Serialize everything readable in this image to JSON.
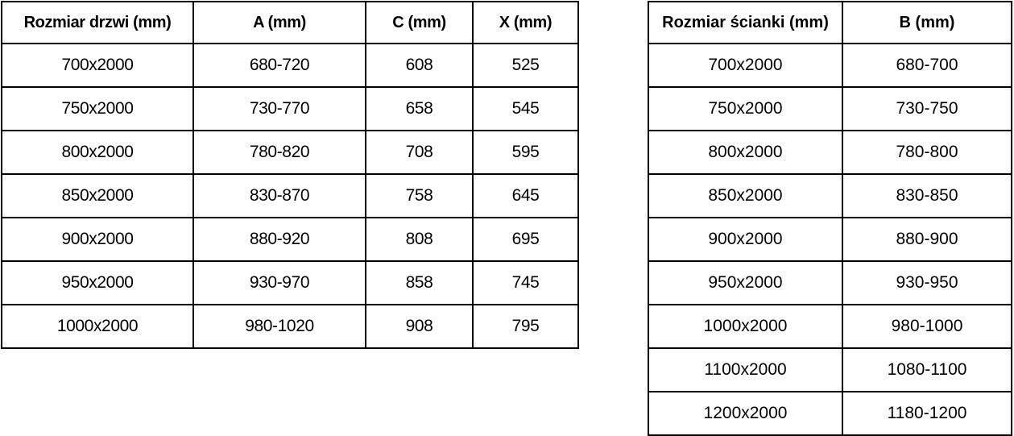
{
  "tables": [
    {
      "name": "door-sizes",
      "headers": [
        "Rozmiar drzwi (mm)",
        "A (mm)",
        "C (mm)",
        "X (mm)"
      ],
      "rows": [
        [
          "700x2000",
          "680-720",
          "608",
          "525"
        ],
        [
          "750x2000",
          "730-770",
          "658",
          "545"
        ],
        [
          "800x2000",
          "780-820",
          "708",
          "595"
        ],
        [
          "850x2000",
          "830-870",
          "758",
          "645"
        ],
        [
          "900x2000",
          "880-920",
          "808",
          "695"
        ],
        [
          "950x2000",
          "930-970",
          "858",
          "745"
        ],
        [
          "1000x2000",
          "980-1020",
          "908",
          "795"
        ]
      ]
    },
    {
      "name": "wall-sizes",
      "headers": [
        "Rozmiar ścianki (mm)",
        "B (mm)"
      ],
      "rows": [
        [
          "700x2000",
          "680-700"
        ],
        [
          "750x2000",
          "730-750"
        ],
        [
          "800x2000",
          "780-800"
        ],
        [
          "850x2000",
          "830-850"
        ],
        [
          "900x2000",
          "880-900"
        ],
        [
          "950x2000",
          "930-950"
        ],
        [
          "1000x2000",
          "980-1000"
        ],
        [
          "1100x2000",
          "1080-1100"
        ],
        [
          "1200x2000",
          "1180-1200"
        ]
      ]
    }
  ],
  "colors": {
    "border": "#000000",
    "text": "#000000",
    "background": "#ffffff"
  }
}
